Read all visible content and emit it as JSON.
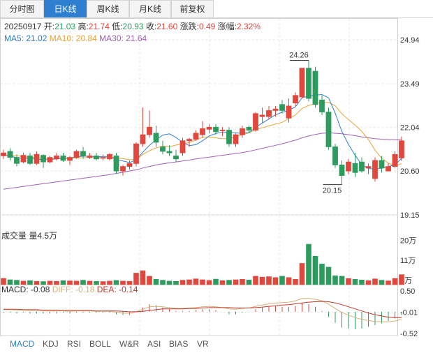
{
  "tabs": [
    {
      "label": "分时图",
      "active": false
    },
    {
      "label": "日K线",
      "active": true
    },
    {
      "label": "周K线",
      "active": false
    },
    {
      "label": "月K线",
      "active": false
    },
    {
      "label": "前复权",
      "active": false
    }
  ],
  "quote": {
    "date": "20250917",
    "open_label": "开:",
    "open": "21.03",
    "high_label": "高:",
    "high": "21.74",
    "low_label": "低:",
    "low": "20.93",
    "close_label": "收:",
    "close": "21.60",
    "change_label": "涨跌:",
    "change": "0.49",
    "pct_label": "涨幅:",
    "pct": "2.32%"
  },
  "ma": {
    "ma5_label": "MA5:",
    "ma5": "21.02",
    "ma10_label": "MA10:",
    "ma10": "20.84",
    "ma30_label": "MA30:",
    "ma30": "21.64"
  },
  "volume": {
    "label": "成交量",
    "amount_label": "量4.5万"
  },
  "macd": {
    "macd_label": "MACD:",
    "macd": "-0.08",
    "diff_label": "DIFF:",
    "diff": "-0.18",
    "dea_label": "DEA:",
    "dea": "-0.14"
  },
  "indicators": [
    "MACD",
    "KDJ",
    "RSI",
    "BOLL",
    "W&R",
    "ASI",
    "BIAS",
    "VR"
  ],
  "colors": {
    "up": "#e0473d",
    "down": "#2e9b5e",
    "ma5": "#2f7fd1",
    "ma10": "#e8a33d",
    "ma30": "#9d62b3",
    "active_tab": "#2f7fd1"
  },
  "chart_data": {
    "type": "candlestick",
    "price_axis": {
      "ticks": [
        "24.94",
        "23.49",
        "22.04",
        "20.60",
        "19.15"
      ],
      "ylim": [
        19.15,
        24.94
      ]
    },
    "volume_axis": {
      "ticks": [
        "20万",
        "11万",
        "2万"
      ],
      "ylim": [
        0,
        22
      ]
    },
    "macd_axis": {
      "ticks": [
        "0.50",
        "-0.01",
        "-0.52"
      ],
      "ylim": [
        -0.52,
        0.5
      ]
    },
    "annotations": [
      {
        "text": "24.26",
        "value": 24.26,
        "type": "high"
      },
      {
        "text": "20.15",
        "value": 20.15,
        "type": "low"
      }
    ],
    "candles": [
      [
        21.1,
        21.2,
        21.3,
        21.0
      ],
      [
        21.25,
        21.05,
        21.35,
        20.95
      ],
      [
        21.05,
        20.85,
        21.15,
        20.75
      ],
      [
        20.9,
        21.12,
        21.2,
        20.85
      ],
      [
        21.1,
        20.85,
        21.2,
        20.8
      ],
      [
        20.85,
        21.15,
        21.25,
        20.8
      ],
      [
        21.12,
        20.9,
        21.15,
        20.7
      ],
      [
        20.9,
        21.05,
        21.1,
        20.85
      ],
      [
        21.0,
        21.1,
        21.2,
        20.95
      ],
      [
        21.1,
        20.95,
        21.2,
        20.9
      ],
      [
        20.95,
        21.05,
        21.1,
        20.8
      ],
      [
        21.05,
        21.25,
        21.3,
        21.0
      ],
      [
        21.25,
        21.1,
        21.4,
        21.0
      ],
      [
        21.05,
        21.1,
        21.2,
        21.0
      ],
      [
        21.1,
        21.0,
        21.2,
        20.95
      ],
      [
        21.02,
        21.05,
        21.15,
        20.95
      ],
      [
        21.0,
        21.15,
        21.2,
        20.95
      ],
      [
        21.1,
        20.6,
        21.2,
        20.5
      ],
      [
        20.6,
        20.75,
        20.8,
        20.45
      ],
      [
        20.75,
        20.85,
        20.95,
        20.65
      ],
      [
        20.85,
        21.5,
        21.55,
        20.75
      ],
      [
        21.5,
        21.8,
        22.7,
        21.4
      ],
      [
        21.8,
        22.05,
        22.6,
        21.7
      ],
      [
        21.85,
        21.55,
        22.1,
        21.4
      ],
      [
        21.4,
        21.25,
        21.6,
        21.15
      ],
      [
        21.25,
        21.2,
        21.45,
        21.1
      ],
      [
        21.1,
        21.0,
        21.3,
        20.9
      ],
      [
        21.2,
        21.6,
        21.7,
        21.1
      ],
      [
        21.6,
        21.65,
        21.7,
        21.4
      ],
      [
        21.65,
        21.85,
        21.95,
        21.6
      ],
      [
        21.8,
        22.0,
        22.25,
        21.7
      ],
      [
        21.98,
        22.05,
        22.15,
        21.85
      ],
      [
        22.05,
        21.9,
        22.15,
        21.8
      ],
      [
        21.95,
        21.95,
        22.05,
        21.75
      ],
      [
        21.95,
        21.5,
        22.05,
        21.4
      ],
      [
        21.5,
        21.8,
        21.85,
        21.4
      ],
      [
        21.8,
        22.0,
        22.1,
        21.7
      ],
      [
        22.05,
        21.95,
        22.1,
        21.85
      ],
      [
        21.95,
        22.5,
        22.55,
        21.9
      ],
      [
        22.4,
        22.45,
        22.7,
        22.2
      ],
      [
        22.4,
        22.6,
        22.75,
        22.3
      ],
      [
        22.6,
        22.65,
        22.75,
        22.4
      ],
      [
        22.8,
        22.6,
        22.95,
        22.5
      ],
      [
        22.35,
        22.75,
        23.0,
        22.2
      ],
      [
        22.85,
        23.1,
        23.2,
        22.75
      ],
      [
        23.05,
        24.0,
        24.0,
        23.0
      ],
      [
        24.0,
        23.0,
        24.26,
        22.9
      ],
      [
        23.9,
        22.8,
        24.05,
        22.7
      ],
      [
        22.95,
        22.55,
        23.1,
        22.45
      ],
      [
        22.55,
        21.4,
        22.7,
        21.3
      ],
      [
        21.4,
        20.8,
        21.5,
        20.7
      ],
      [
        20.8,
        20.45,
        20.95,
        20.15
      ],
      [
        20.6,
        20.9,
        21.0,
        20.5
      ],
      [
        20.85,
        20.55,
        21.2,
        20.4
      ],
      [
        20.9,
        20.6,
        21.05,
        20.55
      ],
      [
        20.7,
        20.75,
        20.85,
        20.5
      ],
      [
        20.35,
        20.95,
        21.05,
        20.25
      ],
      [
        20.95,
        20.7,
        21.1,
        20.55
      ],
      [
        20.6,
        20.75,
        20.85,
        20.6
      ],
      [
        20.75,
        21.15,
        21.25,
        20.7
      ],
      [
        21.03,
        21.6,
        21.74,
        20.93
      ]
    ],
    "volumes": [
      2.8,
      2.2,
      2.0,
      1.6,
      1.8,
      1.5,
      1.4,
      1.6,
      1.5,
      1.8,
      1.7,
      1.6,
      2.0,
      1.6,
      1.5,
      1.4,
      1.6,
      1.9,
      1.6,
      1.5,
      5.2,
      6.3,
      3.8,
      2.4,
      2.0,
      1.6,
      1.5,
      2.0,
      2.2,
      2.6,
      2.2,
      1.9,
      2.5,
      1.8,
      2.0,
      2.2,
      2.4,
      2.1,
      3.8,
      3.4,
      3.6,
      3.2,
      3.8,
      3.2,
      2.4,
      9.6,
      18.2,
      12.8,
      9.3,
      7.9,
      4.0,
      3.8,
      2.8,
      2.4,
      2.1,
      1.8,
      2.6,
      2.0,
      1.7,
      2.8,
      4.5
    ],
    "ma5": [
      21.12,
      21.1,
      21.04,
      21.02,
      21.03,
      21.0,
      20.98,
      20.98,
      21.0,
      21.02,
      21.03,
      21.07,
      21.09,
      21.09,
      21.07,
      21.08,
      21.08,
      20.98,
      20.93,
      20.88,
      20.97,
      21.22,
      21.45,
      21.63,
      21.79,
      21.83,
      21.71,
      21.55,
      21.44,
      21.47,
      21.6,
      21.76,
      21.84,
      21.89,
      21.88,
      21.86,
      21.85,
      21.87,
      22.05,
      22.18,
      22.32,
      22.46,
      22.54,
      22.61,
      22.72,
      23.02,
      23.08,
      23.11,
      23.13,
      23.02,
      22.51,
      21.91,
      21.48,
      21.12,
      20.81,
      20.68,
      20.67,
      20.69,
      20.75,
      20.8,
      21.02
    ],
    "ma10": [
      21.12,
      21.12,
      21.1,
      21.08,
      21.06,
      21.04,
      21.02,
      21.01,
      21.01,
      21.02,
      21.02,
      21.03,
      21.04,
      21.05,
      21.04,
      21.05,
      21.05,
      21.04,
      21.01,
      20.98,
      20.98,
      21.15,
      21.27,
      21.36,
      21.43,
      21.4,
      21.46,
      21.5,
      21.54,
      21.63,
      21.72,
      21.73,
      21.7,
      21.67,
      21.67,
      21.73,
      21.8,
      21.86,
      21.97,
      22.03,
      22.09,
      22.15,
      22.21,
      22.33,
      22.45,
      22.67,
      22.77,
      22.83,
      22.87,
      22.87,
      22.76,
      22.49,
      22.3,
      22.12,
      21.91,
      21.64,
      21.29,
      21.02,
      20.86,
      20.77,
      20.84
    ],
    "ma30": [
      20.0,
      20.03,
      20.06,
      20.09,
      20.12,
      20.15,
      20.18,
      20.21,
      20.24,
      20.27,
      20.3,
      20.33,
      20.36,
      20.39,
      20.42,
      20.45,
      20.48,
      20.52,
      20.56,
      20.6,
      20.64,
      20.7,
      20.75,
      20.8,
      20.84,
      20.87,
      20.9,
      20.93,
      20.96,
      21.0,
      21.03,
      21.06,
      21.09,
      21.12,
      21.15,
      21.18,
      21.21,
      21.25,
      21.3,
      21.35,
      21.4,
      21.45,
      21.5,
      21.56,
      21.62,
      21.7,
      21.76,
      21.81,
      21.85,
      21.86,
      21.85,
      21.83,
      21.8,
      21.77,
      21.73,
      21.7,
      21.67,
      21.65,
      21.64,
      21.63,
      21.64
    ],
    "diff": [
      0.05,
      0.05,
      0.04,
      0.04,
      0.03,
      0.03,
      0.02,
      0.02,
      0.02,
      0.02,
      0.01,
      0.02,
      0.02,
      0.02,
      0.01,
      0.01,
      0.01,
      -0.01,
      -0.03,
      -0.04,
      0.0,
      0.06,
      0.12,
      0.13,
      0.12,
      0.1,
      0.08,
      0.08,
      0.09,
      0.1,
      0.12,
      0.13,
      0.12,
      0.1,
      0.07,
      0.06,
      0.08,
      0.09,
      0.13,
      0.16,
      0.19,
      0.21,
      0.22,
      0.23,
      0.26,
      0.32,
      0.32,
      0.3,
      0.26,
      0.18,
      0.08,
      -0.02,
      -0.08,
      -0.14,
      -0.18,
      -0.21,
      -0.23,
      -0.24,
      -0.24,
      -0.22,
      -0.18
    ],
    "dea": [
      0.06,
      0.06,
      0.06,
      0.05,
      0.05,
      0.05,
      0.04,
      0.04,
      0.04,
      0.03,
      0.03,
      0.03,
      0.03,
      0.03,
      0.02,
      0.02,
      0.02,
      0.02,
      0.01,
      0.0,
      0.0,
      0.01,
      0.03,
      0.05,
      0.07,
      0.07,
      0.07,
      0.07,
      0.08,
      0.08,
      0.09,
      0.1,
      0.1,
      0.1,
      0.1,
      0.09,
      0.09,
      0.09,
      0.1,
      0.11,
      0.13,
      0.14,
      0.16,
      0.17,
      0.19,
      0.21,
      0.23,
      0.24,
      0.25,
      0.24,
      0.21,
      0.17,
      0.12,
      0.07,
      0.02,
      -0.03,
      -0.07,
      -0.1,
      -0.13,
      -0.14,
      -0.14
    ],
    "macd_hist": [
      -0.02,
      -0.02,
      -0.04,
      -0.02,
      -0.04,
      -0.04,
      -0.04,
      -0.04,
      -0.04,
      -0.02,
      -0.04,
      -0.02,
      -0.02,
      -0.02,
      -0.02,
      -0.02,
      -0.02,
      -0.06,
      -0.08,
      -0.08,
      0.0,
      0.1,
      0.18,
      0.16,
      0.1,
      0.06,
      0.02,
      0.02,
      0.02,
      0.04,
      0.06,
      0.06,
      0.04,
      0.0,
      -0.06,
      -0.06,
      -0.02,
      0.0,
      0.06,
      0.1,
      0.12,
      0.14,
      0.12,
      0.12,
      0.14,
      0.22,
      0.18,
      0.12,
      0.02,
      -0.12,
      -0.26,
      -0.38,
      -0.4,
      -0.42,
      -0.4,
      -0.36,
      -0.32,
      -0.28,
      -0.22,
      -0.16,
      -0.08
    ]
  }
}
